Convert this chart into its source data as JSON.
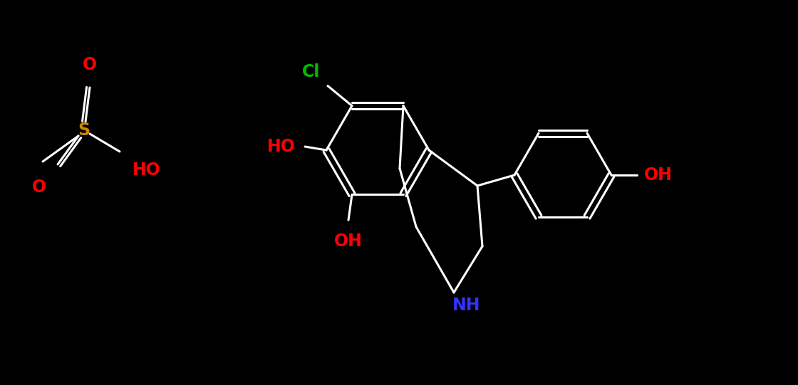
{
  "background_color": "#000000",
  "bond_color": "#ffffff",
  "bond_width": 2.2,
  "figsize": [
    11.2,
    5.41
  ],
  "dpi": 100,
  "colors": {
    "bond": "#ffffff",
    "NH": "#3333ff",
    "Cl": "#00bb00",
    "OH": "#ff0000",
    "S": "#cc8800",
    "O": "#ff0000"
  }
}
